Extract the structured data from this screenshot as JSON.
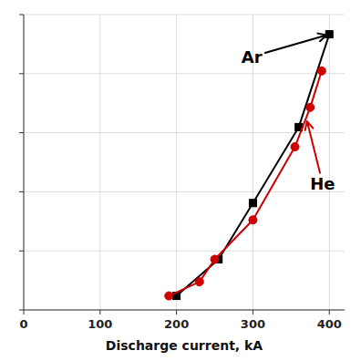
{
  "chart_data": {
    "type": "line",
    "xlabel": "Discharge current, kA",
    "series": [
      {
        "x": [
          200,
          255,
          300,
          360,
          400
        ],
        "values": [
          0.5,
          1.8,
          3.8,
          6.5,
          9.8
        ],
        "color": "#000000",
        "marker": "square"
      },
      {
        "x": [
          190,
          230,
          250,
          300,
          355,
          375,
          390
        ],
        "values": [
          0.5,
          1.0,
          1.8,
          3.2,
          5.8,
          7.2,
          8.5
        ],
        "color": "#cc0000",
        "marker": "circle"
      }
    ],
    "xlim": [
      0,
      420
    ],
    "xticks": [
      0,
      100,
      200,
      300,
      400
    ],
    "ylim": [
      0,
      10.5
    ],
    "yticks": [
      0,
      2.1,
      4.2,
      6.3,
      8.4,
      10.5
    ],
    "tick_labels": "x",
    "grid": true,
    "annotations": [
      {
        "text": "Ar",
        "x": 400,
        "y": 9.8,
        "text_x": 285,
        "text_y": 9.0,
        "color": "#000000"
      },
      {
        "text": "He",
        "x": 370,
        "y": 6.8,
        "text_x": 375,
        "text_y": 4.5,
        "color": "#cc0000"
      }
    ]
  }
}
